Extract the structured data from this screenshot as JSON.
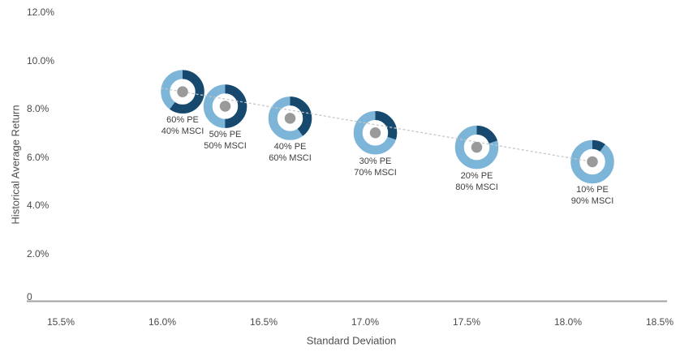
{
  "chart_data": {
    "type": "scatter",
    "title": "",
    "xlabel": "Standard Deviation",
    "ylabel": "Historical Average Return",
    "xlim": [
      15.5,
      18.5
    ],
    "ylim": [
      0,
      12
    ],
    "grid": false,
    "legend": "none",
    "trendline": {
      "style": "dashed",
      "color": "#c7c7c7"
    },
    "x_ticks": [
      {
        "label": "15.5%",
        "value": 15.5
      },
      {
        "label": "16.0%",
        "value": 16.0
      },
      {
        "label": "16.5%",
        "value": 16.5
      },
      {
        "label": "17.0%",
        "value": 17.0
      },
      {
        "label": "17.5%",
        "value": 17.5
      },
      {
        "label": "18.0%",
        "value": 18.0
      },
      {
        "label": "18.5%",
        "value": 18.5
      }
    ],
    "y_ticks": [
      {
        "label": "0",
        "value": 0
      },
      {
        "label": "2.0%",
        "value": 2
      },
      {
        "label": "4.0%",
        "value": 4
      },
      {
        "label": "6.0%",
        "value": 6
      },
      {
        "label": "8.0%",
        "value": 8
      },
      {
        "label": "10.0%",
        "value": 10
      },
      {
        "label": "12.0%",
        "value": 12
      }
    ],
    "points": [
      {
        "label_line1": "60% PE",
        "label_line2": "40% MSCI",
        "pe_pct": 60,
        "msci_pct": 40,
        "std_dev": 16.1,
        "avg_return": 8.7
      },
      {
        "label_line1": "50% PE",
        "label_line2": "50% MSCI",
        "pe_pct": 50,
        "msci_pct": 50,
        "std_dev": 16.31,
        "avg_return": 8.1
      },
      {
        "label_line1": "40% PE",
        "label_line2": "60% MSCI",
        "pe_pct": 40,
        "msci_pct": 60,
        "std_dev": 16.63,
        "avg_return": 7.6
      },
      {
        "label_line1": "30% PE",
        "label_line2": "70% MSCI",
        "pe_pct": 30,
        "msci_pct": 70,
        "std_dev": 17.05,
        "avg_return": 7.0
      },
      {
        "label_line1": "20% PE",
        "label_line2": "80% MSCI",
        "pe_pct": 20,
        "msci_pct": 80,
        "std_dev": 17.55,
        "avg_return": 6.4
      },
      {
        "label_line1": "10% PE",
        "label_line2": "90% MSCI",
        "pe_pct": 10,
        "msci_pct": 90,
        "std_dev": 18.12,
        "avg_return": 5.8
      }
    ],
    "colors": {
      "pe_segment": "#17496e",
      "msci_segment": "#7cb5d8",
      "center_dot": "#9a9a9a",
      "trendline": "#c7c7c7",
      "axis_line": "#a2a2a2",
      "tick_text": "#4a4a4a",
      "label_text": "#3e3e3e"
    }
  }
}
